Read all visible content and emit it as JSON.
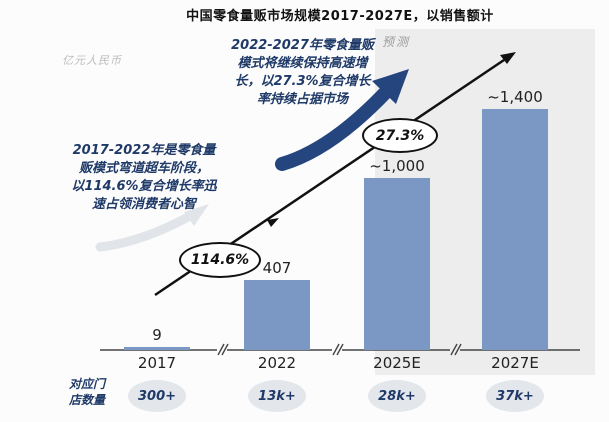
{
  "title": "中国零食量贩市场规模2017-2027E，以销售额计",
  "y_axis_label": "亿元人民币",
  "forecast_label": "预测",
  "annotations": {
    "phase1": "2017-2022年是零食量\n贩模式弯道超车阶段，\n以114.6%复合增长率迅\n速占领消费者心智",
    "phase2": "2022-2027年零食量贩\n模式将继续保持高速增\n长，以27.3%复合增长\n率持续占据市场",
    "cagr_2017_2022": "114.6%",
    "cagr_2022_2027": "27.3%"
  },
  "store_counts_label": "对应门\n店数量",
  "chart_data": {
    "type": "bar",
    "title": "中国零食量贩市场规模2017-2027E，以销售额计",
    "ylabel": "亿元人民币",
    "xlabel": "",
    "categories": [
      "2017",
      "2022",
      "2025E",
      "2027E"
    ],
    "values": [
      9,
      407,
      1000,
      1400
    ],
    "value_labels": [
      "9",
      "407",
      "~1,000",
      "~1,400"
    ],
    "store_counts": [
      "300+",
      "13k+",
      "28k+",
      "37k+"
    ],
    "forecast_categories": [
      "2025E",
      "2027E"
    ],
    "cagr_2017_2022": "114.6%",
    "cagr_2022_2027": "27.3%",
    "ylim": [
      0,
      1500
    ],
    "grid": false,
    "axis_breaks_between_categories": true
  },
  "colors": {
    "bar": "#7b97c4",
    "navy_accent": "#24457d",
    "forecast_background": "#ededed",
    "oval_background": "#e3e6eb",
    "trend_arrow": "#111111"
  }
}
